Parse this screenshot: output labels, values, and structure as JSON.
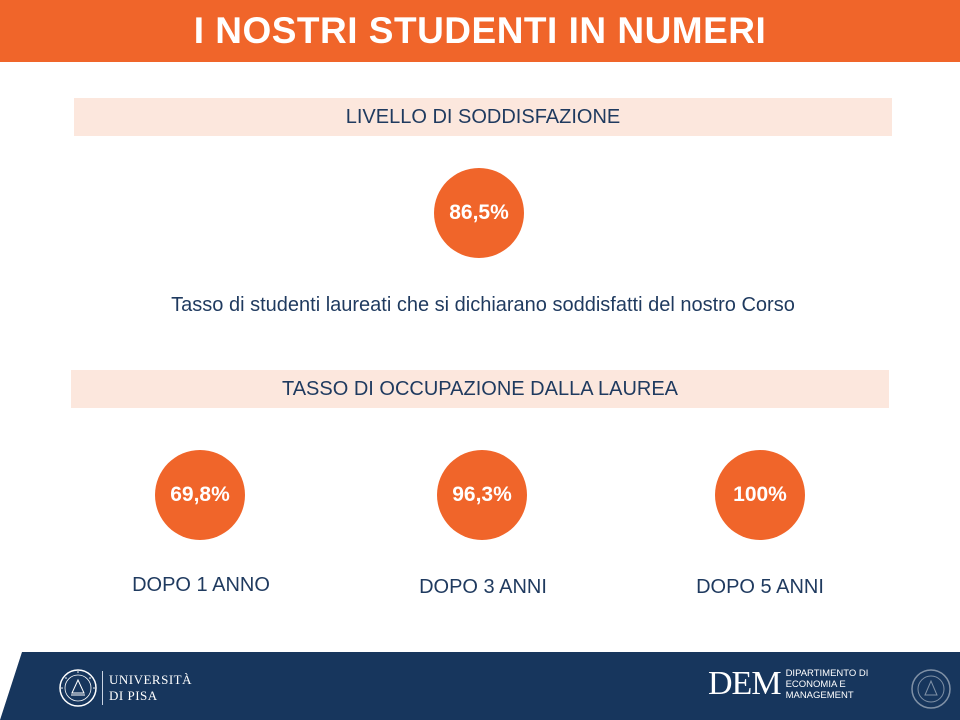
{
  "header": {
    "title": "I NOSTRI STUDENTI IN NUMERI"
  },
  "satisfaction": {
    "heading": "LIVELLO DI SODDISFAZIONE",
    "value": "86,5%",
    "description": "Tasso di studenti laureati che si dichiarano soddisfatti del nostro Corso"
  },
  "employment": {
    "heading": "TASSO DI OCCUPAZIONE DALLA LAUREA",
    "items": [
      {
        "value": "69,8%",
        "label": "DOPO 1 ANNO"
      },
      {
        "value": "96,3%",
        "label": "DOPO 3 ANNI"
      },
      {
        "value": "100%",
        "label": "DOPO 5 ANNI"
      }
    ]
  },
  "footer": {
    "university_line1": "UNIVERSITÀ",
    "university_line2": "DI PISA",
    "dem_logo": "DEM",
    "dem_line1": "DIPARTIMENTO DI",
    "dem_line2": "ECONOMIA E",
    "dem_line3": "MANAGEMENT"
  },
  "colors": {
    "accent": "#f0652a",
    "band": "#fce7dd",
    "text": "#1f3a5f",
    "footer": "#17365d"
  }
}
